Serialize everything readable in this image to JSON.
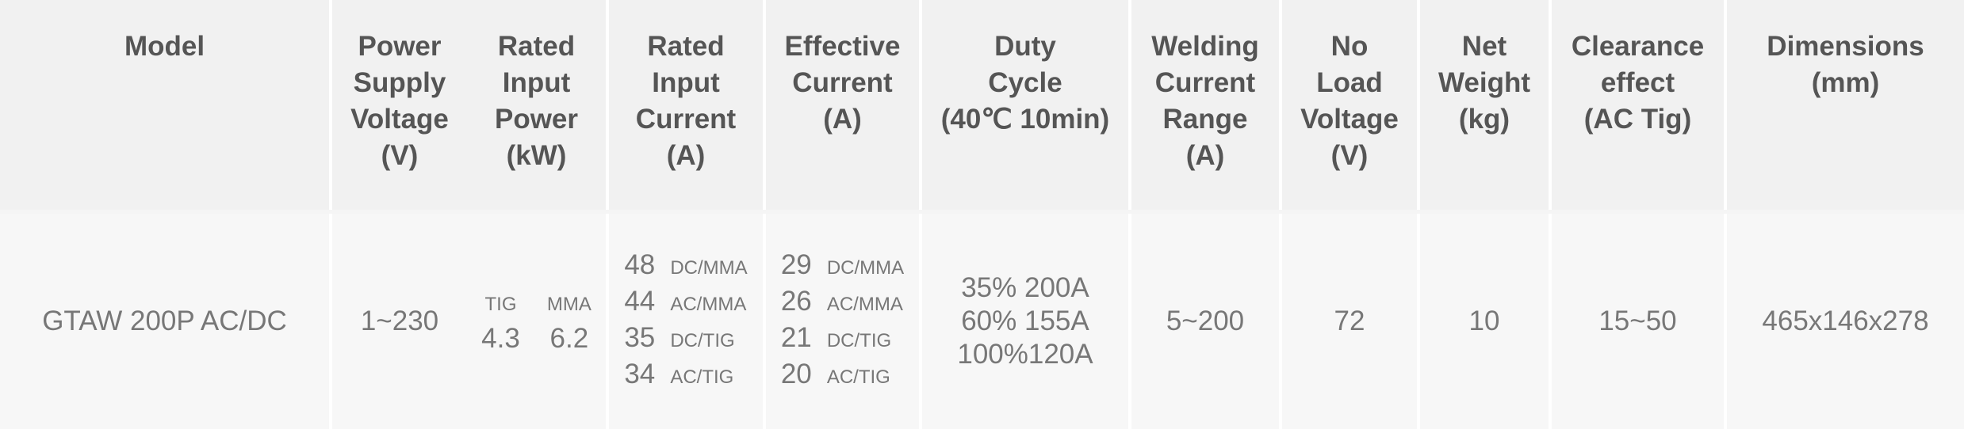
{
  "table": {
    "headers": [
      [
        "Model"
      ],
      [
        "Power",
        "Supply",
        "Voltage",
        "(V)"
      ],
      [
        "Rated",
        "Input",
        "Power",
        "(kW)"
      ],
      [
        "Rated",
        "Input",
        "Current",
        "(A)"
      ],
      [
        "Effective",
        "Current",
        "(A)"
      ],
      [
        "Duty",
        "Cycle",
        "(40℃ 10min)"
      ],
      [
        "Welding",
        "Current",
        "Range",
        "(A)"
      ],
      [
        "No",
        "Load",
        "Voltage",
        "(V)"
      ],
      [
        "Net",
        "Weight",
        "(kg)"
      ],
      [
        "Clearance",
        "effect",
        "(AC Tig)"
      ],
      [
        "Dimensions",
        "(mm)"
      ]
    ],
    "rows": [
      {
        "model": "GTAW 200P AC/DC",
        "voltage": "1~230",
        "power": [
          {
            "mode": "TIG",
            "value": "4.3"
          },
          {
            "mode": "MMA",
            "value": "6.2"
          }
        ],
        "input_current": [
          {
            "value": "48",
            "mode": "DC/MMA"
          },
          {
            "value": "44",
            "mode": "AC/MMA"
          },
          {
            "value": "35",
            "mode": "DC/TIG"
          },
          {
            "value": "34",
            "mode": "AC/TIG"
          }
        ],
        "effective_current": [
          {
            "value": "29",
            "mode": "DC/MMA"
          },
          {
            "value": "26",
            "mode": "AC/MMA"
          },
          {
            "value": "21",
            "mode": "DC/TIG"
          },
          {
            "value": "20",
            "mode": "AC/TIG"
          }
        ],
        "duty_cycle": [
          "35% 200A",
          "60% 155A",
          "100%120A"
        ],
        "range": "5~200",
        "no_load": "72",
        "weight": "10",
        "clearance": "15~50",
        "dimensions": "465x146x278"
      }
    ]
  }
}
